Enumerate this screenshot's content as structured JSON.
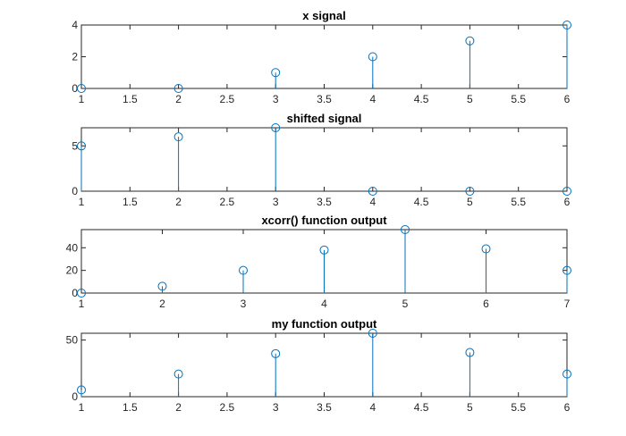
{
  "chart_data": [
    {
      "type": "stem",
      "title": "x signal",
      "x": [
        1,
        2,
        3,
        4,
        5,
        6
      ],
      "y": [
        0,
        0,
        1,
        2,
        3,
        4
      ],
      "xlim": [
        1,
        6
      ],
      "ylim": [
        0,
        4
      ],
      "xticks": [
        1,
        1.5,
        2,
        2.5,
        3,
        3.5,
        4,
        4.5,
        5,
        5.5,
        6
      ],
      "yticks": [
        0,
        2,
        4
      ],
      "xtick_labels": [
        "1",
        "1.5",
        "2",
        "2.5",
        "3",
        "3.5",
        "4",
        "4.5",
        "5",
        "5.5",
        "6"
      ],
      "ytick_labels": [
        "0",
        "2",
        "4"
      ],
      "grid": false,
      "color": "#0072BD"
    },
    {
      "type": "stem",
      "title": "shifted signal",
      "x": [
        1,
        2,
        3,
        4,
        5,
        6
      ],
      "y": [
        5,
        6,
        7,
        0,
        0,
        0
      ],
      "xlim": [
        1,
        6
      ],
      "ylim": [
        0,
        7
      ],
      "xticks": [
        1,
        1.5,
        2,
        2.5,
        3,
        3.5,
        4,
        4.5,
        5,
        5.5,
        6
      ],
      "yticks": [
        0,
        5
      ],
      "xtick_labels": [
        "1",
        "1.5",
        "2",
        "2.5",
        "3",
        "3.5",
        "4",
        "4.5",
        "5",
        "5.5",
        "6"
      ],
      "ytick_labels": [
        "0",
        "5"
      ],
      "grid": false,
      "color": "#0072BD"
    },
    {
      "type": "stem",
      "title": "xcorr() function output",
      "x": [
        1,
        2,
        3,
        4,
        5,
        6,
        7
      ],
      "y": [
        0,
        6,
        20,
        38,
        56,
        39,
        20
      ],
      "xlim": [
        1,
        7
      ],
      "ylim": [
        0,
        56
      ],
      "xticks": [
        1,
        2,
        3,
        4,
        5,
        6,
        7
      ],
      "yticks": [
        0,
        20,
        40
      ],
      "xtick_labels": [
        "1",
        "2",
        "3",
        "4",
        "5",
        "6",
        "7"
      ],
      "ytick_labels": [
        "0",
        "20",
        "40"
      ],
      "grid": false,
      "color": "#0072BD"
    },
    {
      "type": "stem",
      "title": "my function output",
      "x": [
        1,
        2,
        3,
        4,
        5,
        6
      ],
      "y": [
        6,
        20,
        38,
        56,
        39,
        20
      ],
      "xlim": [
        1,
        6
      ],
      "ylim": [
        0,
        56
      ],
      "xticks": [
        1,
        1.5,
        2,
        2.5,
        3,
        3.5,
        4,
        4.5,
        5,
        5.5,
        6
      ],
      "yticks": [
        0,
        50
      ],
      "xtick_labels": [
        "1",
        "1.5",
        "2",
        "2.5",
        "3",
        "3.5",
        "4",
        "4.5",
        "5",
        "5.5",
        "6"
      ],
      "ytick_labels": [
        "0",
        "50"
      ],
      "grid": false,
      "color": "#0072BD"
    }
  ]
}
